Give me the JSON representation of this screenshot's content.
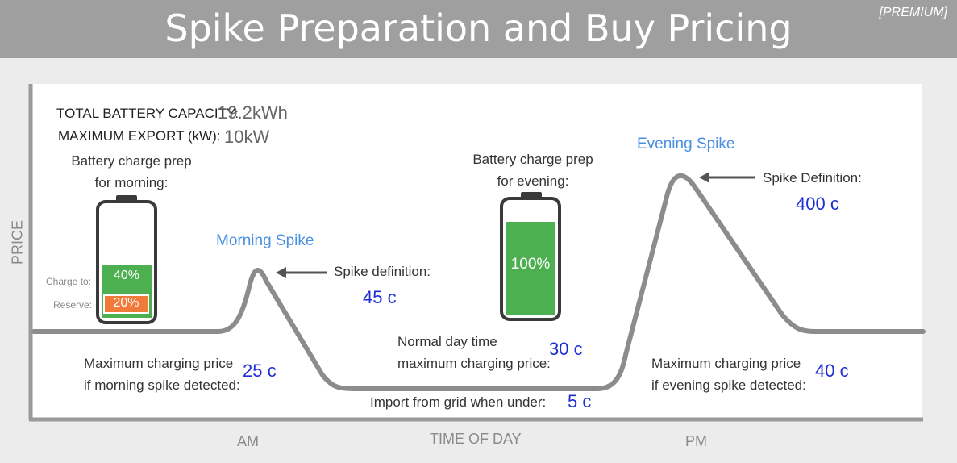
{
  "header": {
    "title": "Spike Preparation and Buy Pricing",
    "badge": "[PREMIUM]"
  },
  "specs": {
    "capacity_label": "TOTAL BATTERY CAPACITY:",
    "capacity_value": "19.2kWh",
    "export_label": "MAXIMUM EXPORT (kW):",
    "export_value": "10kW"
  },
  "morning_battery": {
    "title_line1": "Battery charge prep",
    "title_line2": "for morning:",
    "charge_to_label": "Charge to:",
    "charge_to_value": "40%",
    "reserve_label": "Reserve:",
    "reserve_value": "20%",
    "charge_fraction": 0.4,
    "reserve_fraction": 0.2,
    "charge_color": "#4caf50",
    "reserve_color": "#f07a3a"
  },
  "evening_battery": {
    "title_line1": "Battery charge prep",
    "title_line2": "for evening:",
    "charge_value": "100%",
    "charge_fraction": 1.0,
    "charge_color": "#4caf50"
  },
  "morning_spike": {
    "label": "Morning Spike",
    "definition_label": "Spike definition:",
    "definition_value": "45 c"
  },
  "evening_spike": {
    "label": "Evening Spike",
    "definition_label": "Spike Definition:",
    "definition_value": "400 c"
  },
  "prices": {
    "morning_max_line1": "Maximum charging price",
    "morning_max_line2": "if morning spike detected:",
    "morning_max_value": "25 c",
    "day_max_line1": "Normal day time",
    "day_max_line2": "maximum charging price:",
    "day_max_value": "30 c",
    "import_label": "Import from grid when under:",
    "import_value": "5 c",
    "evening_max_line1": "Maximum charging price",
    "evening_max_line2": "if evening spike detected:",
    "evening_max_value": "40 c"
  },
  "axes": {
    "y_label": "PRICE",
    "x_label": "TIME OF DAY",
    "am": "AM",
    "pm": "PM"
  },
  "colors": {
    "curve": "#8c8c8c",
    "arrow": "#555555",
    "accent_blue": "#4a90e2",
    "value_blue": "#1f2fd4"
  }
}
